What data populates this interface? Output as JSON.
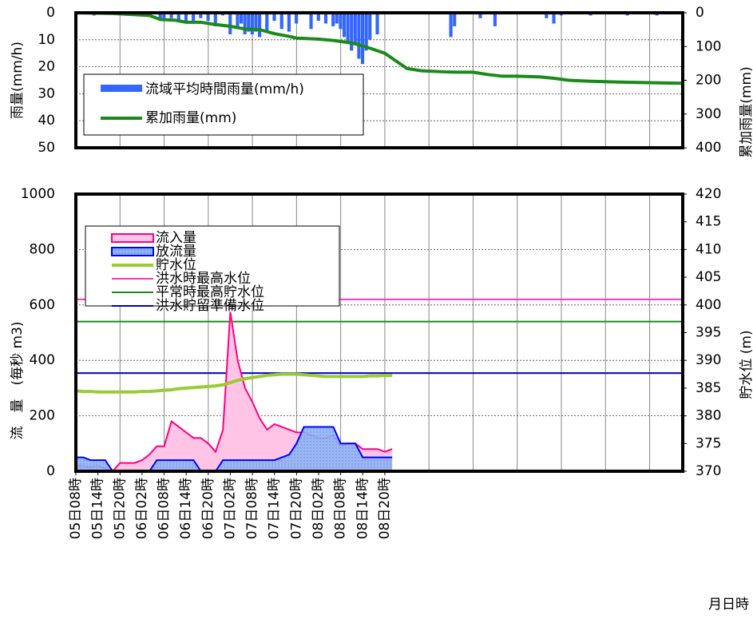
{
  "chart_data": [
    {
      "type": "rain",
      "ylabel": "雨量(mm/h)",
      "y2label": "累加雨量(mm)",
      "xlim": [
        0,
        165
      ],
      "xgrid": [
        12,
        24,
        36,
        48,
        60,
        72,
        84,
        96,
        108,
        120,
        132,
        144,
        156
      ],
      "ylim": [
        0,
        50
      ],
      "yticks": [
        0,
        10,
        20,
        30,
        40,
        50
      ],
      "y2lim": [
        0,
        400
      ],
      "y2ticks": [
        0,
        100,
        200,
        300,
        400
      ],
      "series": [
        {
          "name": "流域平均時間雨量(mm/h)",
          "color": "#3366ff",
          "x": [
            2,
            3,
            4,
            5,
            6,
            7,
            8,
            23,
            24,
            26,
            28,
            30,
            32,
            34,
            36,
            38,
            40,
            42,
            44,
            45,
            46,
            47,
            48,
            49,
            50,
            52,
            54,
            56,
            58,
            60,
            64,
            66,
            68,
            70,
            71,
            72,
            73,
            74,
            75,
            76,
            77,
            78,
            79,
            80,
            82,
            102,
            103,
            110,
            114,
            128,
            130,
            132,
            140,
            150,
            158
          ],
          "values": [
            0.5,
            0.5,
            0.5,
            1,
            0.5,
            0.5,
            0.5,
            3,
            2,
            2,
            3,
            4,
            3,
            2,
            3,
            5,
            1,
            8,
            5,
            4,
            8,
            7,
            8,
            7,
            9,
            7,
            3,
            6,
            7,
            4,
            6,
            3,
            4,
            5,
            4,
            6,
            9,
            11,
            14,
            12,
            17,
            19,
            14,
            10,
            8,
            9,
            5,
            2,
            5,
            2,
            4,
            1,
            1,
            1,
            1
          ]
        },
        {
          "name": "累加雨量(mm)",
          "color": "#1a8a1a",
          "axis": "y2",
          "x": [
            0,
            10,
            20,
            23,
            27,
            30,
            34,
            38,
            42,
            46,
            50,
            54,
            58,
            60,
            66,
            70,
            74,
            76,
            80,
            84,
            86,
            88,
            90,
            94,
            100,
            104,
            108,
            112,
            116,
            120,
            126,
            130,
            134,
            140,
            150,
            160,
            165
          ],
          "values": [
            0,
            2,
            8,
            20,
            22,
            28,
            28,
            35,
            40,
            48,
            50,
            62,
            70,
            75,
            78,
            82,
            88,
            92,
            105,
            120,
            135,
            150,
            165,
            172,
            175,
            176,
            176,
            183,
            188,
            188,
            190,
            194,
            200,
            203,
            206,
            208,
            209
          ]
        }
      ]
    },
    {
      "type": "hydro",
      "ylabel": "流　量　(毎秒 m3)",
      "y2label": "貯水位 (m)",
      "xlabel": "月日時",
      "xlim": [
        0,
        165
      ],
      "xgrid": [
        12,
        24,
        36,
        48,
        60,
        72,
        84,
        96,
        108,
        120,
        132,
        144,
        156
      ],
      "xticks": [
        {
          "value": 0,
          "label": "05日08時"
        },
        {
          "value": 6,
          "label": "05日14時"
        },
        {
          "value": 12,
          "label": "05日20時"
        },
        {
          "value": 18,
          "label": "06日02時"
        },
        {
          "value": 24,
          "label": "06日08時"
        },
        {
          "value": 30,
          "label": "06日14時"
        },
        {
          "value": 36,
          "label": "06日20時"
        },
        {
          "value": 42,
          "label": "07日02時"
        },
        {
          "value": 48,
          "label": "07日08時"
        },
        {
          "value": 54,
          "label": "07日14時"
        },
        {
          "value": 60,
          "label": "07日20時"
        },
        {
          "value": 66,
          "label": "08日02時"
        },
        {
          "value": 72,
          "label": "08日08時"
        },
        {
          "value": 78,
          "label": "08日14時"
        },
        {
          "value": 84,
          "label": "08日20時"
        }
      ],
      "ylim": [
        0,
        1000
      ],
      "yticks": [
        0,
        200,
        400,
        600,
        800,
        1000
      ],
      "y2lim": [
        370,
        420
      ],
      "y2ticks": [
        370,
        375,
        380,
        385,
        390,
        395,
        400,
        405,
        410,
        415,
        420
      ],
      "x": [
        0,
        2,
        4,
        6,
        8,
        10,
        12,
        14,
        16,
        18,
        20,
        22,
        24,
        26,
        28,
        30,
        32,
        34,
        36,
        38,
        40,
        42,
        44,
        46,
        48,
        50,
        52,
        54,
        56,
        58,
        60,
        62,
        64,
        66,
        68,
        70,
        72,
        74,
        76,
        78,
        80,
        82,
        84,
        86
      ],
      "series": [
        {
          "name": "流入量",
          "color": "#ff0080",
          "fill": "#ffc4e6",
          "values": [
            20,
            20,
            15,
            20,
            10,
            0,
            30,
            30,
            30,
            40,
            60,
            90,
            90,
            180,
            160,
            140,
            120,
            120,
            100,
            70,
            150,
            575,
            400,
            300,
            250,
            190,
            150,
            170,
            160,
            150,
            140,
            140,
            130,
            120,
            120,
            130,
            90,
            100,
            100,
            80,
            80,
            80,
            70,
            80
          ]
        },
        {
          "name": "放流量",
          "color": "#0000ff",
          "fill": "#8fb4f5",
          "values": [
            50,
            50,
            40,
            40,
            40,
            0,
            0,
            0,
            0,
            0,
            0,
            40,
            40,
            40,
            40,
            40,
            40,
            0,
            0,
            0,
            40,
            40,
            40,
            40,
            40,
            40,
            40,
            40,
            50,
            60,
            100,
            160,
            160,
            160,
            160,
            160,
            100,
            100,
            100,
            50,
            50,
            50,
            50,
            50
          ]
        },
        {
          "name": "貯水位",
          "color": "#99cc33",
          "axis": "y2",
          "values": [
            384.5,
            384.4,
            384.4,
            384.3,
            384.3,
            384.3,
            384.3,
            384.3,
            384.3,
            384.4,
            384.4,
            384.5,
            384.6,
            384.7,
            384.9,
            385.0,
            385.1,
            385.2,
            385.3,
            385.4,
            385.6,
            386.0,
            386.4,
            386.7,
            386.9,
            387.1,
            387.3,
            387.4,
            387.5,
            387.5,
            387.5,
            387.4,
            387.3,
            387.2,
            387.1,
            387.1,
            387.1,
            387.1,
            387.1,
            387.1,
            387.2,
            387.2,
            387.3,
            387.3
          ]
        }
      ],
      "hlines": [
        {
          "name": "洪水時最高水位",
          "color": "#ff33cc",
          "value": 401
        },
        {
          "name": "平常時最高貯水位",
          "color": "#1a8a1a",
          "value": 397
        },
        {
          "name": "洪水貯留準備水位",
          "color": "#0000cc",
          "value": 387.7
        }
      ]
    }
  ]
}
